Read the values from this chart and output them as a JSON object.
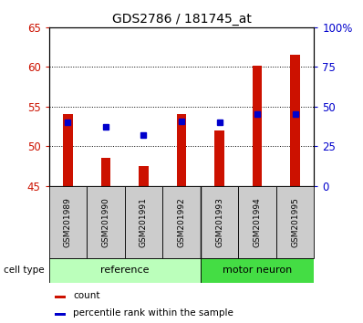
{
  "title": "GDS2786 / 181745_at",
  "samples": [
    "GSM201989",
    "GSM201990",
    "GSM201991",
    "GSM201992",
    "GSM201993",
    "GSM201994",
    "GSM201995"
  ],
  "count_values": [
    54.0,
    48.5,
    47.5,
    54.0,
    52.0,
    60.2,
    61.5
  ],
  "percentile_values": [
    40.0,
    37.0,
    32.0,
    40.5,
    40.0,
    45.0,
    45.0
  ],
  "bar_bottom": 45.0,
  "ylim_left": [
    45,
    65
  ],
  "ylim_right": [
    0,
    100
  ],
  "yticks_left": [
    45,
    50,
    55,
    60,
    65
  ],
  "yticks_right": [
    0,
    25,
    50,
    75,
    100
  ],
  "ytick_labels_right": [
    "0",
    "25",
    "50",
    "75",
    "100%"
  ],
  "bar_color": "#cc1100",
  "blue_color": "#0000cc",
  "reference_group": [
    0,
    1,
    2,
    3
  ],
  "motor_neuron_group": [
    4,
    5,
    6
  ],
  "reference_color": "#bbffbb",
  "motor_neuron_color": "#44dd44",
  "label_bg_color": "#cccccc",
  "ref_label": "reference",
  "motor_label": "motor neuron",
  "cell_type_label": "cell type",
  "legend_count": "count",
  "legend_percentile": "percentile rank within the sample",
  "left_axis_color": "#cc1100",
  "right_axis_color": "#0000cc",
  "bar_width": 0.25
}
